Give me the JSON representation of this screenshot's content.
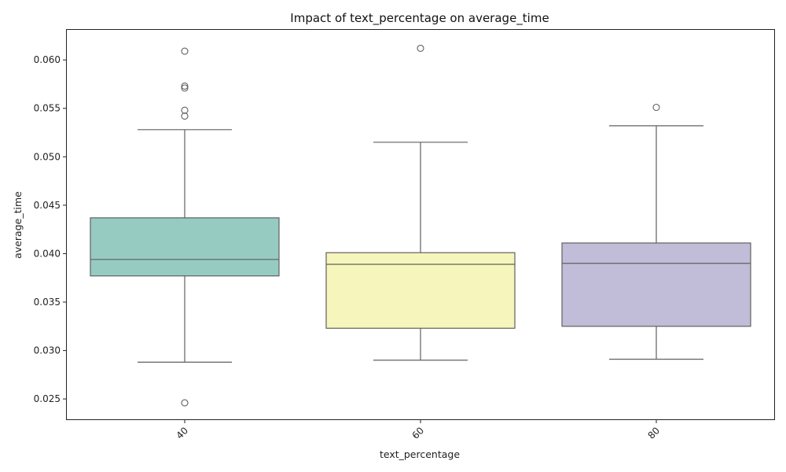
{
  "chart_data": {
    "type": "box",
    "title": "Impact of text_percentage on average_time",
    "xlabel": "text_percentage",
    "ylabel": "average_time",
    "ylim": [
      0.0229,
      0.0631
    ],
    "yticks": [
      "0.025",
      "0.030",
      "0.035",
      "0.040",
      "0.045",
      "0.050",
      "0.055",
      "0.060"
    ],
    "grid": false,
    "categories": [
      "40",
      "60",
      "80"
    ],
    "colors": [
      "#96cbc1",
      "#f6f6bc",
      "#c1bdd8"
    ],
    "edge_color": "#606060",
    "boxes": [
      {
        "category": "40",
        "whisker_low": 0.0288,
        "q1": 0.0377,
        "median": 0.0394,
        "q3": 0.0437,
        "whisker_high": 0.0528,
        "outliers": [
          0.0609,
          0.0573,
          0.0571,
          0.0548,
          0.0542,
          0.0246
        ]
      },
      {
        "category": "60",
        "whisker_low": 0.029,
        "q1": 0.0323,
        "median": 0.0389,
        "q3": 0.0401,
        "whisker_high": 0.0515,
        "outliers": [
          0.0612
        ]
      },
      {
        "category": "80",
        "whisker_low": 0.0291,
        "q1": 0.0325,
        "median": 0.039,
        "q3": 0.0411,
        "whisker_high": 0.0532,
        "outliers": [
          0.0551
        ]
      }
    ]
  }
}
